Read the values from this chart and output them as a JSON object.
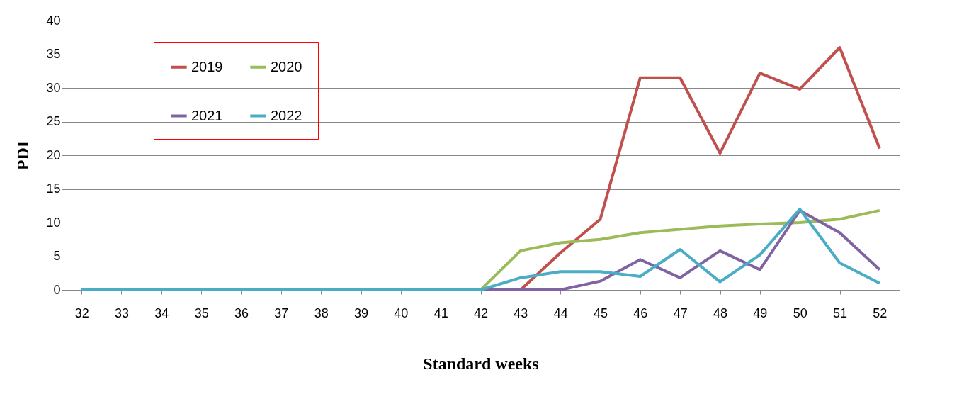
{
  "chart_data": {
    "type": "line",
    "xlabel": "Standard weeks",
    "ylabel": "PDI",
    "categories": [
      "32",
      "33",
      "34",
      "35",
      "36",
      "37",
      "38",
      "39",
      "40",
      "41",
      "42",
      "43",
      "44",
      "45",
      "46",
      "47",
      "48",
      "49",
      "50",
      "51",
      "52"
    ],
    "series": [
      {
        "name": "2019",
        "color": "#c0504d",
        "values": [
          null,
          null,
          null,
          null,
          null,
          null,
          null,
          null,
          null,
          null,
          null,
          0,
          5.5,
          10.5,
          31.5,
          31.5,
          20.3,
          32.2,
          29.8,
          36,
          21
        ]
      },
      {
        "name": "2020",
        "color": "#9bbb59",
        "values": [
          null,
          null,
          null,
          null,
          null,
          null,
          null,
          null,
          null,
          0,
          0,
          5.8,
          7,
          7.5,
          8.5,
          9,
          9.5,
          9.8,
          10,
          10.5,
          11.8
        ]
      },
      {
        "name": "2021",
        "color": "#8064a2",
        "values": [
          0,
          0,
          0,
          0,
          0,
          0,
          0,
          0,
          0,
          0,
          0,
          0,
          0,
          1.3,
          4.5,
          1.8,
          5.8,
          3,
          11.8,
          8.5,
          3
        ]
      },
      {
        "name": "2022",
        "color": "#4bacc6",
        "values": [
          0,
          0,
          0,
          0,
          0,
          0,
          0,
          0,
          0,
          0,
          0,
          1.8,
          2.7,
          2.7,
          2,
          6,
          1.2,
          5.2,
          12,
          4,
          1
        ]
      }
    ],
    "ylim": [
      0,
      40
    ],
    "yticks": [
      0,
      5,
      10,
      15,
      20,
      25,
      30,
      35,
      40
    ],
    "grid": "y",
    "legend": "top left",
    "marker": "none",
    "line_style": "solid"
  }
}
